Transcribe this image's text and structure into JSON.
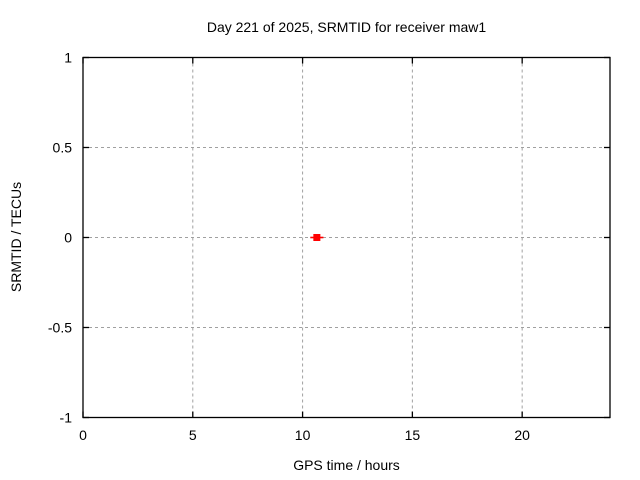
{
  "window": {
    "background": "#ffffff",
    "text_color": "#000000"
  },
  "chart_data": {
    "type": "line",
    "title": "Day 221 of 2025, SRMTID for receiver maw1",
    "xlabel": "GPS time / hours",
    "ylabel": "SRMTID / TECUs",
    "xlim": [
      0,
      24
    ],
    "ylim": [
      -1,
      1
    ],
    "xticks": [
      0,
      5,
      10,
      15,
      20
    ],
    "xtick_labels": [
      "0",
      "5",
      "10",
      "15",
      "20"
    ],
    "yticks": [
      1,
      0.5,
      0,
      -0.5,
      -1
    ],
    "ytick_labels": [
      "1",
      "0.5",
      "0",
      "-0.5",
      "-1"
    ],
    "grid": true,
    "grid_color": "#a0a0a0",
    "axis_color": "#000000",
    "legend": "none",
    "series": [
      {
        "name": "srmtid-maw1",
        "color": "#ff0000",
        "marker": "filled-square",
        "points": [
          [
            10.35,
            0
          ],
          [
            10.65,
            0
          ],
          [
            10.95,
            0
          ]
        ],
        "marker_points": [
          [
            10.65,
            0
          ]
        ]
      }
    ]
  }
}
